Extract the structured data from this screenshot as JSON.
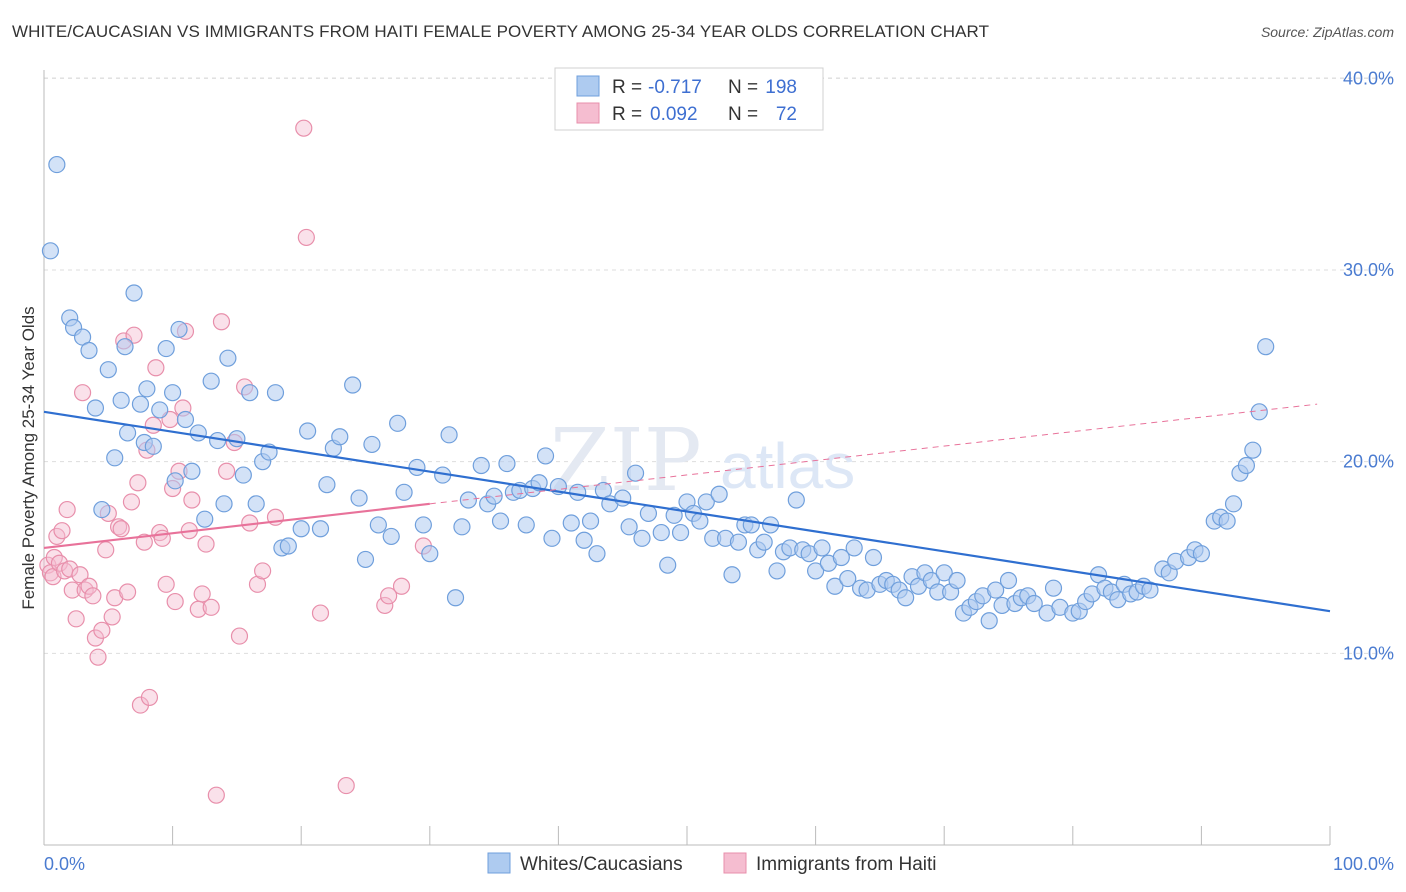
{
  "title": "WHITE/CAUCASIAN VS IMMIGRANTS FROM HAITI FEMALE POVERTY AMONG 25-34 YEAR OLDS CORRELATION CHART",
  "source": "Source: ZipAtlas.com",
  "watermark": {
    "zip": "ZIP",
    "atlas": "atlas"
  },
  "legend": {
    "rows": [
      {
        "r_label": "R =",
        "r_value": "-0.717",
        "n_label": "N =",
        "n_value": "198"
      },
      {
        "r_label": "R =",
        "r_value": "0.092",
        "n_label": "N =",
        "n_value": "72"
      }
    ]
  },
  "bottom_legend": [
    "Whites/Caucasians",
    "Immigrants from Haiti"
  ],
  "colors": {
    "blue_fill": "#aecbf0",
    "blue_stroke": "#6f9fdc",
    "blue_line": "#2f6fd0",
    "pink_fill": "#f5bdd0",
    "pink_stroke": "#e88fab",
    "pink_line": "#e8729a",
    "grid": "#dddddd",
    "tick_text": "#4a7bd0"
  },
  "chart_data": {
    "type": "scatter",
    "title": "WHITE/CAUCASIAN VS IMMIGRANTS FROM HAITI FEMALE POVERTY AMONG 25-34 YEAR OLDS CORRELATION CHART",
    "xlabel": "",
    "ylabel": "Female Poverty Among 25-34 Year Olds",
    "xlim": [
      0,
      100
    ],
    "ylim": [
      0,
      42
    ],
    "x_tick_labels": [
      "0.0%",
      "100.0%"
    ],
    "y_ticks": [
      10,
      20,
      30,
      40
    ],
    "y_tick_labels": [
      "10.0%",
      "20.0%",
      "30.0%",
      "40.0%"
    ],
    "grid": true,
    "legend_position": "top-center",
    "series": [
      {
        "name": "Whites/Caucasians",
        "r": -0.717,
        "n": 198,
        "trend": {
          "x": [
            0,
            100
          ],
          "y": [
            22.6,
            12.2
          ]
        },
        "points": [
          [
            0.5,
            31
          ],
          [
            1,
            35.5
          ],
          [
            2,
            27.5
          ],
          [
            2.3,
            27
          ],
          [
            3,
            26.5
          ],
          [
            3.5,
            25.8
          ],
          [
            4,
            22.8
          ],
          [
            4.5,
            17.5
          ],
          [
            5,
            24.8
          ],
          [
            5.5,
            20.2
          ],
          [
            6,
            23.2
          ],
          [
            6.3,
            26
          ],
          [
            6.5,
            21.5
          ],
          [
            7,
            28.8
          ],
          [
            7.5,
            23
          ],
          [
            7.8,
            21
          ],
          [
            8,
            23.8
          ],
          [
            8.5,
            20.8
          ],
          [
            9,
            22.7
          ],
          [
            9.5,
            25.9
          ],
          [
            10,
            23.6
          ],
          [
            10.2,
            19
          ],
          [
            10.5,
            26.9
          ],
          [
            11,
            22.2
          ],
          [
            11.5,
            19.5
          ],
          [
            12,
            21.5
          ],
          [
            12.5,
            17
          ],
          [
            13,
            24.2
          ],
          [
            13.5,
            21.1
          ],
          [
            14,
            17.8
          ],
          [
            14.3,
            25.4
          ],
          [
            15,
            21.2
          ],
          [
            15.5,
            19.3
          ],
          [
            16,
            23.6
          ],
          [
            16.5,
            17.8
          ],
          [
            17,
            20
          ],
          [
            17.5,
            20.5
          ],
          [
            18,
            23.6
          ],
          [
            18.5,
            15.5
          ],
          [
            19,
            15.6
          ],
          [
            20,
            16.5
          ],
          [
            20.5,
            21.6
          ],
          [
            21.5,
            16.5
          ],
          [
            22,
            18.8
          ],
          [
            22.5,
            20.7
          ],
          [
            23,
            21.3
          ],
          [
            24,
            24
          ],
          [
            24.5,
            18.1
          ],
          [
            25,
            14.9
          ],
          [
            25.5,
            20.9
          ],
          [
            26,
            16.7
          ],
          [
            27,
            16.1
          ],
          [
            27.5,
            22
          ],
          [
            28,
            18.4
          ],
          [
            29,
            19.7
          ],
          [
            29.5,
            16.7
          ],
          [
            30,
            15.2
          ],
          [
            31,
            19.3
          ],
          [
            31.5,
            21.4
          ],
          [
            32,
            12.9
          ],
          [
            32.5,
            16.6
          ],
          [
            33,
            18
          ],
          [
            34,
            19.8
          ],
          [
            34.5,
            17.8
          ],
          [
            35,
            18.2
          ],
          [
            35.5,
            16.9
          ],
          [
            36,
            19.9
          ],
          [
            36.5,
            18.4
          ],
          [
            37,
            18.5
          ],
          [
            37.5,
            16.7
          ],
          [
            38,
            18.6
          ],
          [
            38.5,
            18.9
          ],
          [
            39,
            20.3
          ],
          [
            39.5,
            16
          ],
          [
            40,
            18.7
          ],
          [
            41,
            16.8
          ],
          [
            41.5,
            18.4
          ],
          [
            42,
            15.9
          ],
          [
            42.5,
            16.9
          ],
          [
            43,
            15.2
          ],
          [
            43.5,
            18.5
          ],
          [
            44,
            17.8
          ],
          [
            45,
            18.1
          ],
          [
            45.5,
            16.6
          ],
          [
            46,
            19.4
          ],
          [
            46.5,
            16
          ],
          [
            47,
            17.3
          ],
          [
            48,
            16.3
          ],
          [
            48.5,
            14.6
          ],
          [
            49,
            17.2
          ],
          [
            49.5,
            16.3
          ],
          [
            50,
            17.9
          ],
          [
            50.5,
            17.3
          ],
          [
            51,
            16.9
          ],
          [
            51.5,
            17.9
          ],
          [
            52,
            16
          ],
          [
            52.5,
            18.3
          ],
          [
            53,
            16
          ],
          [
            53.5,
            14.1
          ],
          [
            54,
            15.8
          ],
          [
            54.5,
            16.7
          ],
          [
            55,
            16.7
          ],
          [
            55.5,
            15.4
          ],
          [
            56,
            15.8
          ],
          [
            56.5,
            16.7
          ],
          [
            57,
            14.3
          ],
          [
            57.5,
            15.3
          ],
          [
            58,
            15.5
          ],
          [
            58.5,
            18
          ],
          [
            59,
            15.4
          ],
          [
            59.5,
            15.2
          ],
          [
            60,
            14.3
          ],
          [
            60.5,
            15.5
          ],
          [
            61,
            14.7
          ],
          [
            61.5,
            13.5
          ],
          [
            62,
            15
          ],
          [
            62.5,
            13.9
          ],
          [
            63,
            15.5
          ],
          [
            63.5,
            13.4
          ],
          [
            64,
            13.3
          ],
          [
            64.5,
            15
          ],
          [
            65,
            13.6
          ],
          [
            65.5,
            13.8
          ],
          [
            66,
            13.6
          ],
          [
            66.5,
            13.3
          ],
          [
            67,
            12.9
          ],
          [
            67.5,
            14
          ],
          [
            68,
            13.5
          ],
          [
            68.5,
            14.2
          ],
          [
            69,
            13.8
          ],
          [
            69.5,
            13.2
          ],
          [
            70,
            14.2
          ],
          [
            70.5,
            13.2
          ],
          [
            71,
            13.8
          ],
          [
            71.5,
            12.1
          ],
          [
            72,
            12.4
          ],
          [
            72.5,
            12.7
          ],
          [
            73,
            13
          ],
          [
            73.5,
            11.7
          ],
          [
            74,
            13.3
          ],
          [
            74.5,
            12.5
          ],
          [
            75,
            13.8
          ],
          [
            75.5,
            12.6
          ],
          [
            76,
            12.9
          ],
          [
            76.5,
            13
          ],
          [
            77,
            12.6
          ],
          [
            78,
            12.1
          ],
          [
            78.5,
            13.4
          ],
          [
            79,
            12.4
          ],
          [
            80,
            12.1
          ],
          [
            80.5,
            12.2
          ],
          [
            81,
            12.7
          ],
          [
            81.5,
            13.1
          ],
          [
            82,
            14.1
          ],
          [
            82.5,
            13.4
          ],
          [
            83,
            13.2
          ],
          [
            83.5,
            12.8
          ],
          [
            84,
            13.6
          ],
          [
            84.5,
            13.1
          ],
          [
            85,
            13.2
          ],
          [
            85.5,
            13.5
          ],
          [
            86,
            13.3
          ],
          [
            87,
            14.4
          ],
          [
            87.5,
            14.2
          ],
          [
            88,
            14.8
          ],
          [
            89,
            15
          ],
          [
            89.5,
            15.4
          ],
          [
            90,
            15.2
          ],
          [
            91,
            16.9
          ],
          [
            91.5,
            17.1
          ],
          [
            92,
            16.9
          ],
          [
            92.5,
            17.8
          ],
          [
            93,
            19.4
          ],
          [
            93.5,
            19.8
          ],
          [
            94,
            20.6
          ],
          [
            94.5,
            22.6
          ],
          [
            95,
            26
          ]
        ]
      },
      {
        "name": "Immigrants from Haiti",
        "r": 0.092,
        "n": 72,
        "trend_solid": {
          "x": [
            0,
            30
          ],
          "y": [
            15.5,
            17.8
          ]
        },
        "trend_dashed": {
          "x": [
            30,
            99
          ],
          "y": [
            17.8,
            23
          ]
        },
        "points": [
          [
            0.3,
            14.6
          ],
          [
            0.5,
            14.2
          ],
          [
            0.7,
            14
          ],
          [
            0.8,
            15
          ],
          [
            1,
            16.1
          ],
          [
            1.2,
            14.7
          ],
          [
            1.4,
            16.4
          ],
          [
            1.6,
            14.3
          ],
          [
            1.8,
            17.5
          ],
          [
            2,
            14.4
          ],
          [
            2.2,
            13.3
          ],
          [
            2.5,
            11.8
          ],
          [
            2.8,
            14.1
          ],
          [
            3,
            23.6
          ],
          [
            3.2,
            13.3
          ],
          [
            3.5,
            13.5
          ],
          [
            3.8,
            13
          ],
          [
            4,
            10.8
          ],
          [
            4.2,
            9.8
          ],
          [
            4.5,
            11.2
          ],
          [
            4.8,
            15.4
          ],
          [
            5,
            17.3
          ],
          [
            5.3,
            11.9
          ],
          [
            5.5,
            12.9
          ],
          [
            5.8,
            16.6
          ],
          [
            6,
            16.5
          ],
          [
            6.2,
            26.3
          ],
          [
            6.5,
            13.2
          ],
          [
            6.8,
            17.9
          ],
          [
            7,
            26.6
          ],
          [
            7.3,
            18.9
          ],
          [
            7.5,
            7.3
          ],
          [
            7.8,
            15.8
          ],
          [
            8,
            20.6
          ],
          [
            8.2,
            7.7
          ],
          [
            8.5,
            21.9
          ],
          [
            8.7,
            24.9
          ],
          [
            9,
            16.3
          ],
          [
            9.2,
            16
          ],
          [
            9.5,
            13.6
          ],
          [
            9.8,
            22.2
          ],
          [
            10,
            18.6
          ],
          [
            10.2,
            12.7
          ],
          [
            10.5,
            19.5
          ],
          [
            10.8,
            22.8
          ],
          [
            11,
            26.8
          ],
          [
            11.3,
            16.4
          ],
          [
            11.5,
            18
          ],
          [
            12,
            12.3
          ],
          [
            12.3,
            13.1
          ],
          [
            12.6,
            15.7
          ],
          [
            13,
            12.4
          ],
          [
            13.4,
            2.6
          ],
          [
            13.8,
            27.3
          ],
          [
            14.2,
            19.5
          ],
          [
            14.8,
            21
          ],
          [
            15.2,
            10.9
          ],
          [
            15.6,
            23.9
          ],
          [
            16,
            16.8
          ],
          [
            16.6,
            13.6
          ],
          [
            17,
            14.3
          ],
          [
            18,
            17.1
          ],
          [
            20.2,
            37.4
          ],
          [
            20.4,
            31.7
          ],
          [
            21.5,
            12.1
          ],
          [
            23.5,
            3.1
          ],
          [
            26.5,
            12.5
          ],
          [
            26.8,
            13.0
          ],
          [
            27.8,
            13.5
          ],
          [
            29.5,
            15.6
          ]
        ]
      }
    ]
  }
}
